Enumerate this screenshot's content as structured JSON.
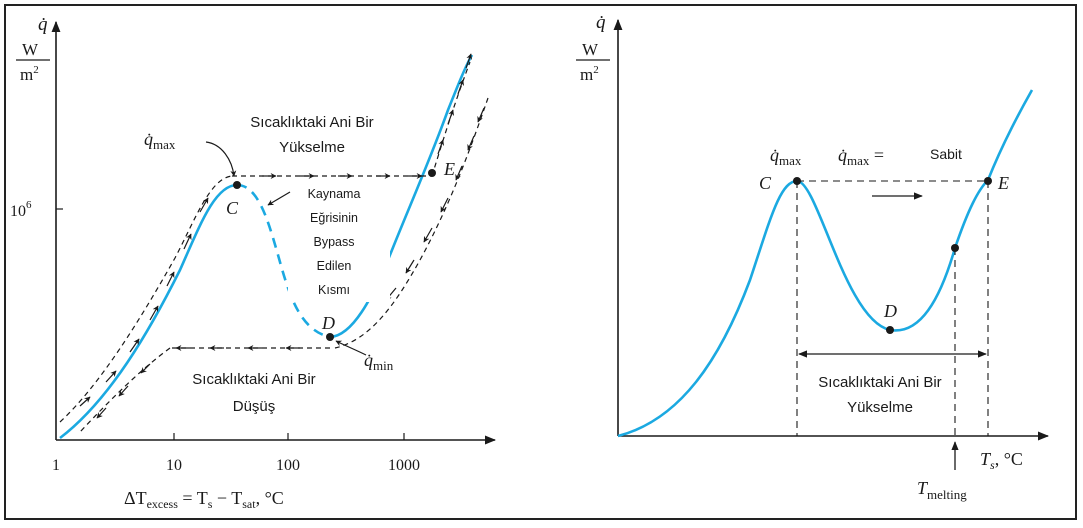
{
  "left_panel": {
    "y_symbol": "q̇",
    "y_unit_num": "W",
    "y_unit_den": "m",
    "y_unit_den_exp": "2",
    "y_tick": "10",
    "y_tick_exp": "6",
    "x_ticks": [
      "1",
      "10",
      "100",
      "1000"
    ],
    "x_label_delta": "ΔT",
    "x_label_sub": "excess",
    "x_label_eq": " = T",
    "x_label_s": "s",
    "x_label_minus": " − T",
    "x_label_sat": "sat",
    "x_label_unit": ", °C",
    "qmax_symbol": "q̇",
    "qmax_sub": "max",
    "qmin_symbol": "q̇",
    "qmin_sub": "min",
    "point_c": "C",
    "point_d": "D",
    "point_e": "E",
    "jump_up_line1": "Sıcaklıktaki Ani Bir",
    "jump_up_line2": "Yükselme",
    "jump_down_line1": "Sıcaklıktaki Ani Bir",
    "jump_down_line2": "Düşüş",
    "bypass_line1": "Kaynama",
    "bypass_line2": "Eğrisinin",
    "bypass_line3": "Bypass",
    "bypass_line4": "Edilen",
    "bypass_line5": "Kısmı"
  },
  "right_panel": {
    "y_symbol": "q̇",
    "y_unit_num": "W",
    "y_unit_den": "m",
    "y_unit_den_exp": "2",
    "qmax_symbol": "q̇",
    "qmax_sub": "max",
    "qmax_eq_symbol": "q̇",
    "qmax_eq_sub": "max",
    "qmax_eq_sign": " =",
    "sabit": "Sabit",
    "point_c": "C",
    "point_d": "D",
    "point_e": "E",
    "jump_line1": "Sıcaklıktaki Ani Bir",
    "jump_line2": "Yükselme",
    "x_label_t": "T",
    "x_label_s": "s",
    "x_label_unit": ", °C",
    "melting_t": "T",
    "melting_sub": "melting"
  },
  "colors": {
    "curve": "#1ba9e1",
    "ink": "#1a1a1a"
  }
}
